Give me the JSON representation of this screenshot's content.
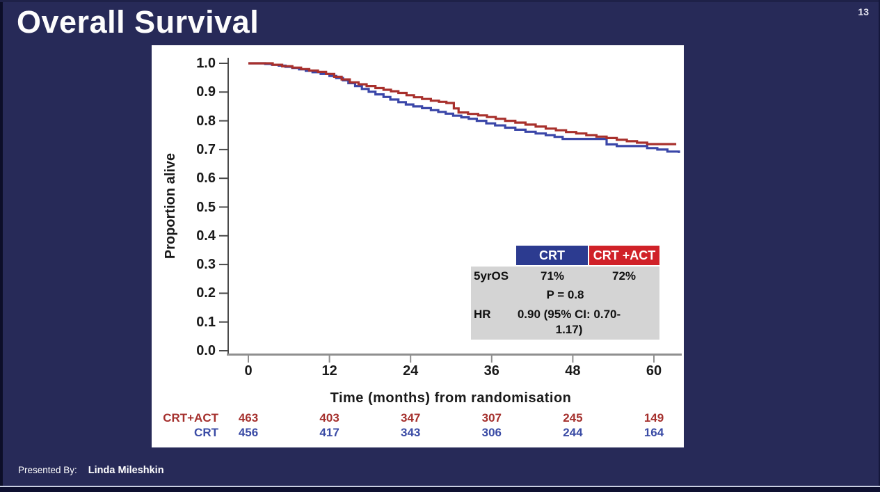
{
  "slide": {
    "title": "Overall Survival",
    "page_number": "13",
    "presented_by_label": "Presented By:",
    "presenter_name": "Linda Mileshkin"
  },
  "chart_data": {
    "type": "line",
    "subtype": "kaplan-meier-step",
    "xlabel": "Time (months) from randomisation",
    "ylabel": "Proportion alive",
    "xlim": [
      0,
      64
    ],
    "ylim": [
      0.0,
      1.0
    ],
    "x_ticks": [
      0,
      12,
      24,
      36,
      48,
      60
    ],
    "y_tick_labels": [
      "1.0",
      "0.9",
      "0.8",
      "0.7",
      "0.6",
      "0.5",
      "0.4",
      "0.3",
      "0.2",
      "0.1",
      "0.0"
    ],
    "grid": false,
    "series": [
      {
        "name": "CRT",
        "color": "#3a46a8",
        "points": [
          [
            0,
            1.0
          ],
          [
            2.5,
            0.998
          ],
          [
            3.5,
            0.995
          ],
          [
            4.5,
            0.992
          ],
          [
            5.5,
            0.988
          ],
          [
            6.5,
            0.984
          ],
          [
            7.5,
            0.979
          ],
          [
            8.5,
            0.974
          ],
          [
            9.5,
            0.969
          ],
          [
            10.7,
            0.963
          ],
          [
            12,
            0.956
          ],
          [
            13,
            0.949
          ],
          [
            14,
            0.941
          ],
          [
            14.8,
            0.931
          ],
          [
            15.8,
            0.921
          ],
          [
            16.8,
            0.911
          ],
          [
            17.8,
            0.901
          ],
          [
            18.8,
            0.892
          ],
          [
            20,
            0.883
          ],
          [
            21,
            0.874
          ],
          [
            22.2,
            0.865
          ],
          [
            23.3,
            0.857
          ],
          [
            24.4,
            0.85
          ],
          [
            25.7,
            0.844
          ],
          [
            27,
            0.837
          ],
          [
            28.1,
            0.831
          ],
          [
            29.2,
            0.825
          ],
          [
            30.3,
            0.818
          ],
          [
            31.5,
            0.812
          ],
          [
            32.6,
            0.807
          ],
          [
            33.8,
            0.8
          ],
          [
            35.2,
            0.791
          ],
          [
            36.5,
            0.784
          ],
          [
            38,
            0.776
          ],
          [
            39.5,
            0.769
          ],
          [
            41,
            0.762
          ],
          [
            42.5,
            0.756
          ],
          [
            44,
            0.75
          ],
          [
            45.3,
            0.744
          ],
          [
            46.5,
            0.737
          ],
          [
            52.5,
            0.737
          ],
          [
            53,
            0.718
          ],
          [
            54.5,
            0.712
          ],
          [
            59,
            0.705
          ],
          [
            60.5,
            0.7
          ],
          [
            62,
            0.693
          ],
          [
            63.7,
            0.688
          ]
        ]
      },
      {
        "name": "CRT +ACT",
        "color": "#a8302c",
        "points": [
          [
            0,
            1.0
          ],
          [
            2.5,
            1.0
          ],
          [
            3.6,
            0.995
          ],
          [
            5,
            0.99
          ],
          [
            6.5,
            0.985
          ],
          [
            7.8,
            0.98
          ],
          [
            9,
            0.975
          ],
          [
            10.3,
            0.97
          ],
          [
            11.5,
            0.963
          ],
          [
            12.7,
            0.953
          ],
          [
            13.8,
            0.944
          ],
          [
            15,
            0.934
          ],
          [
            16.3,
            0.927
          ],
          [
            17.5,
            0.921
          ],
          [
            18.8,
            0.914
          ],
          [
            20,
            0.908
          ],
          [
            21.1,
            0.903
          ],
          [
            22.2,
            0.897
          ],
          [
            23.4,
            0.889
          ],
          [
            24.5,
            0.882
          ],
          [
            25.7,
            0.876
          ],
          [
            27,
            0.87
          ],
          [
            28.2,
            0.866
          ],
          [
            29.3,
            0.862
          ],
          [
            30.4,
            0.843
          ],
          [
            31.1,
            0.829
          ],
          [
            32.5,
            0.824
          ],
          [
            34,
            0.819
          ],
          [
            35.3,
            0.813
          ],
          [
            36.6,
            0.807
          ],
          [
            38,
            0.8
          ],
          [
            39.5,
            0.794
          ],
          [
            41,
            0.787
          ],
          [
            42.5,
            0.78
          ],
          [
            44,
            0.773
          ],
          [
            45.5,
            0.767
          ],
          [
            47,
            0.761
          ],
          [
            48.5,
            0.756
          ],
          [
            50,
            0.75
          ],
          [
            51.5,
            0.745
          ],
          [
            53,
            0.74
          ],
          [
            54.5,
            0.734
          ],
          [
            56,
            0.729
          ],
          [
            57.5,
            0.724
          ],
          [
            59,
            0.719
          ],
          [
            63.3,
            0.719
          ]
        ]
      }
    ],
    "stats_table": {
      "col_headers": [
        {
          "label": "CRT",
          "color": "#2c3b90"
        },
        {
          "label": "CRT +ACT",
          "color": "#d02128"
        }
      ],
      "five_yr_label": "5yrOS",
      "five_yr_crt": "71%",
      "five_yr_crt_act": "72%",
      "p_value": "P = 0.8",
      "hr_label": "HR",
      "hr_line1": "0.90 (95% CI: 0.70-",
      "hr_line2": "1.17)"
    },
    "risk_table": {
      "rows": [
        {
          "label": "CRT+ACT",
          "color": "#a5302d",
          "values": [
            "463",
            "403",
            "347",
            "307",
            "245",
            "149"
          ]
        },
        {
          "label": "CRT",
          "color": "#3a4ba5",
          "values": [
            "456",
            "417",
            "343",
            "306",
            "244",
            "164"
          ]
        }
      ]
    }
  }
}
